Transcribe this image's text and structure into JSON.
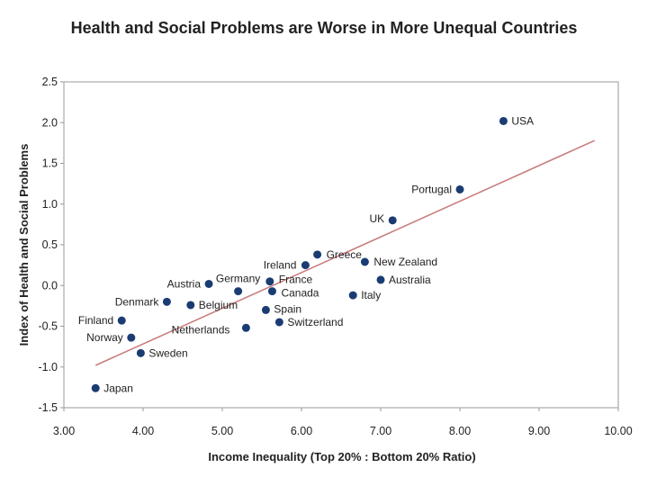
{
  "chart_data": {
    "type": "scatter",
    "title": "Health and Social Problems are Worse in More Unequal Countries",
    "xlabel": "Income Inequality (Top 20% : Bottom 20% Ratio)",
    "ylabel": "Index of Health and Social Problems",
    "xlim": [
      3.0,
      10.0
    ],
    "ylim": [
      -1.5,
      2.5
    ],
    "x_ticks": [
      "3.00",
      "4.00",
      "5.00",
      "6.00",
      "7.00",
      "8.00",
      "9.00",
      "10.00"
    ],
    "y_ticks": [
      "2.5",
      "2.0",
      "1.5",
      "1.0",
      "0.5",
      "0.0",
      "-0.5",
      "-1.0",
      "-1.5"
    ],
    "grid": false,
    "points": [
      {
        "label": "USA",
        "x": 8.55,
        "y": 2.02
      },
      {
        "label": "Portugal",
        "x": 8.0,
        "y": 1.18
      },
      {
        "label": "UK",
        "x": 7.15,
        "y": 0.8
      },
      {
        "label": "Greece",
        "x": 6.2,
        "y": 0.38
      },
      {
        "label": "Ireland",
        "x": 6.05,
        "y": 0.25
      },
      {
        "label": "New Zealand",
        "x": 6.8,
        "y": 0.29
      },
      {
        "label": "Australia",
        "x": 7.0,
        "y": 0.07
      },
      {
        "label": "Italy",
        "x": 6.65,
        "y": -0.12
      },
      {
        "label": "Germany",
        "x": 5.2,
        "y": -0.07
      },
      {
        "label": "France",
        "x": 5.6,
        "y": 0.05
      },
      {
        "label": "Canada",
        "x": 5.63,
        "y": -0.07
      },
      {
        "label": "Spain",
        "x": 5.55,
        "y": -0.3
      },
      {
        "label": "Switzerland",
        "x": 5.72,
        "y": -0.45
      },
      {
        "label": "Austria",
        "x": 4.83,
        "y": 0.02
      },
      {
        "label": "Belgium",
        "x": 4.6,
        "y": -0.24
      },
      {
        "label": "Denmark",
        "x": 4.3,
        "y": -0.2
      },
      {
        "label": "Netherlands",
        "x": 5.3,
        "y": -0.52
      },
      {
        "label": "Finland",
        "x": 3.73,
        "y": -0.43
      },
      {
        "label": "Norway",
        "x": 3.85,
        "y": -0.64
      },
      {
        "label": "Sweden",
        "x": 3.97,
        "y": -0.83
      },
      {
        "label": "Japan",
        "x": 3.4,
        "y": -1.26
      }
    ],
    "trendline": {
      "x": [
        3.4,
        9.7
      ],
      "y": [
        -0.98,
        1.78
      ]
    },
    "colors": {
      "point": "#1a3c73",
      "trendline": "#c8787a",
      "frame": "#999999"
    }
  }
}
